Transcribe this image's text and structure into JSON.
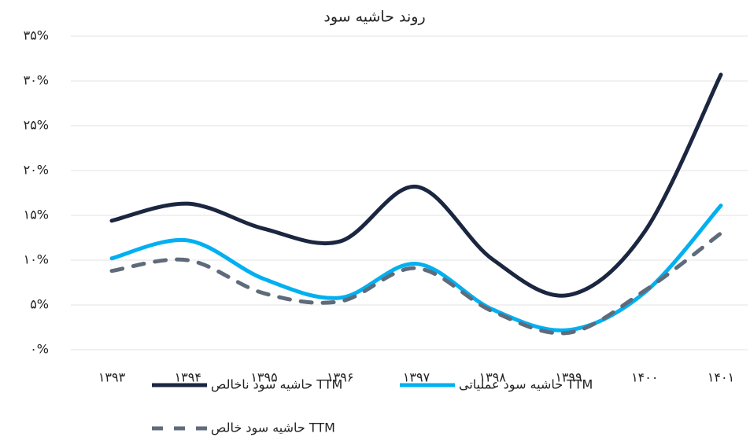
{
  "chart_data": {
    "type": "line",
    "title": "روند حاشیه سود",
    "categories": [
      "۱۳۹۳",
      "۱۳۹۴",
      "۱۳۹۵",
      "۱۳۹۶",
      "۱۳۹۷",
      "۱۳۹۸",
      "۱۳۹۹",
      "۱۴۰۰",
      "۱۴۰۱"
    ],
    "series": [
      {
        "name": "حاشیه سود ناخالص TTM",
        "color": "#1b2640",
        "dash": false,
        "values": [
          14.4,
          16.3,
          13.5,
          12.1,
          18.2,
          10.1,
          6.1,
          13.2,
          30.7
        ]
      },
      {
        "name": "حاشیه سود عملیاتی TTM",
        "color": "#00b0f0",
        "dash": false,
        "values": [
          10.2,
          12.2,
          7.9,
          5.8,
          9.6,
          4.5,
          2.2,
          6.4,
          16.1
        ]
      },
      {
        "name": "حاشیه سود خالص TTM",
        "color": "#5f6b7a",
        "dash": true,
        "values": [
          8.8,
          10.0,
          6.3,
          5.4,
          9.1,
          4.3,
          1.9,
          6.6,
          13.0
        ]
      }
    ],
    "ylim": [
      0,
      35
    ],
    "yticks": [
      {
        "value": 0,
        "label": "۰%"
      },
      {
        "value": 5,
        "label": "۵%"
      },
      {
        "value": 10,
        "label": "۱۰%"
      },
      {
        "value": 15,
        "label": "۱۵%"
      },
      {
        "value": 20,
        "label": "۲۰%"
      },
      {
        "value": 25,
        "label": "۲۵%"
      },
      {
        "value": 30,
        "label": "۳۰%"
      },
      {
        "value": 35,
        "label": "۳۵%"
      }
    ],
    "grid": true,
    "legend": "bottom"
  }
}
